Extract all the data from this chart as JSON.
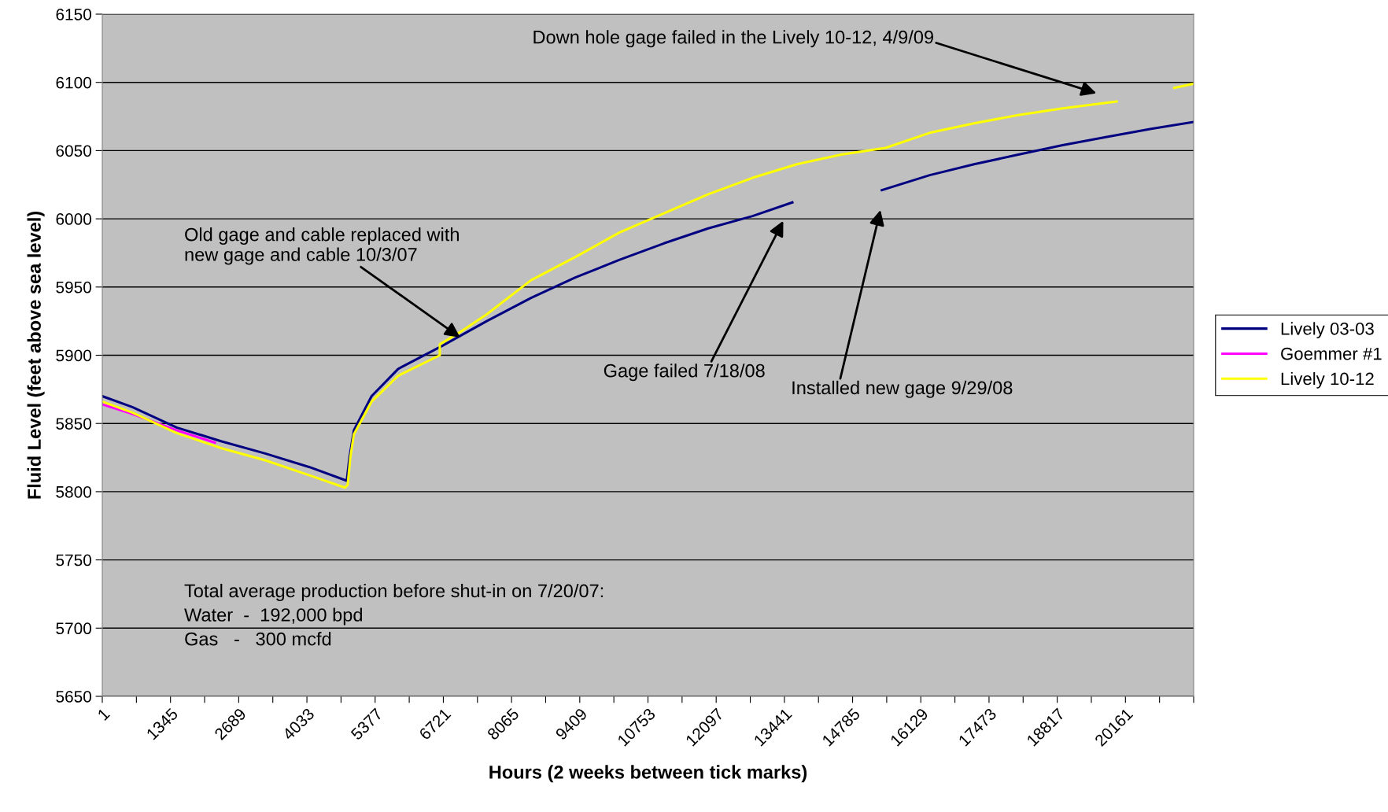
{
  "chart_data": {
    "type": "line",
    "xlabel": "Hours (2 weeks between tick marks)",
    "ylabel": "Fluid Level (feet above sea level)",
    "xlim": [
      1,
      21505
    ],
    "ylim": [
      5650,
      6150
    ],
    "yticks": [
      5650,
      5700,
      5750,
      5800,
      5850,
      5900,
      5950,
      6000,
      6050,
      6100,
      6150
    ],
    "xticks": [
      1,
      {
        "value": 673,
        "label": null
      },
      1345,
      {
        "value": 2017,
        "label": null
      },
      2689,
      {
        "value": 3361,
        "label": null
      },
      4033,
      {
        "value": 4705,
        "label": null
      },
      5377,
      {
        "value": 6049,
        "label": null
      },
      6721,
      {
        "value": 7393,
        "label": null
      },
      8065,
      {
        "value": 8737,
        "label": null
      },
      9409,
      {
        "value": 10081,
        "label": null
      },
      10753,
      {
        "value": 11425,
        "label": null
      },
      12097,
      {
        "value": 12769,
        "label": null
      },
      13441,
      {
        "value": 14113,
        "label": null
      },
      14785,
      {
        "value": 15457,
        "label": null
      },
      16129,
      {
        "value": 16801,
        "label": null
      },
      17473,
      {
        "value": 18145,
        "label": null
      },
      18817,
      {
        "value": 19489,
        "label": null
      },
      20161,
      {
        "value": 20833,
        "label": null
      },
      {
        "value": 21505,
        "label": null
      }
    ],
    "grid": "y",
    "legend": "right",
    "series": [
      {
        "name": "Lively 03-03",
        "color": "#000080",
        "x": [
          1,
          594,
          1467,
          2340,
          3213,
          4085,
          4818,
          4871,
          4958,
          5307,
          5831,
          6704,
          7576,
          8449,
          9322,
          10195,
          11067,
          11940,
          12813,
          13598,
          14500,
          15361,
          16304,
          17177,
          18049,
          18922,
          19795,
          20668,
          21505
        ],
        "values": [
          5870,
          5862,
          5847,
          5837,
          5828,
          5818,
          5808,
          5825,
          5845,
          5870,
          5890,
          5907,
          5925,
          5942,
          5957,
          5970,
          5982,
          5993,
          6002,
          6012,
          null,
          6021,
          6032,
          6040,
          6047,
          6054,
          6060,
          6066,
          6071
        ]
      },
      {
        "name": "Goemmer #1",
        "color": "#ff00ff",
        "x": [
          1,
          594,
          1467,
          2218
        ],
        "values": [
          5864,
          5857,
          5845,
          5836
        ]
      },
      {
        "name": "Lively 10-12",
        "color": "#ffff00",
        "x": [
          1,
          594,
          1467,
          2340,
          3213,
          4085,
          4784,
          4836,
          4888,
          4958,
          5307,
          5831,
          6651,
          6651,
          7053,
          7576,
          8449,
          9322,
          10195,
          11067,
          11940,
          12813,
          13686,
          14558,
          15431,
          16304,
          17177,
          18049,
          18922,
          19987,
          20500,
          21122,
          21505
        ],
        "values": [
          5866,
          5858,
          5843,
          5832,
          5823,
          5812,
          5803,
          5805,
          5825,
          5842,
          5866,
          5885,
          5900,
          5908,
          5917,
          5930,
          5955,
          5972,
          5990,
          6004,
          6018,
          6030,
          6040,
          6047,
          6052,
          6063,
          6070,
          6076,
          6081,
          6086,
          null,
          6096,
          6099
        ]
      }
    ],
    "annotations": [
      "Down hole gage failed in the Lively 10-12, 4/9/09",
      {
        "text": "Old gage and cable replaced with\nnew gage and cable 10/3/07",
        "x": 7053,
        "y": 5913
      },
      "Gage failed 7/18/08",
      "Installed new gage 9/29/08",
      "Total average production before shut-in on 7/20/07:\nWater  -  192,000 bpd\nGas   -   300 mcfd"
    ]
  }
}
